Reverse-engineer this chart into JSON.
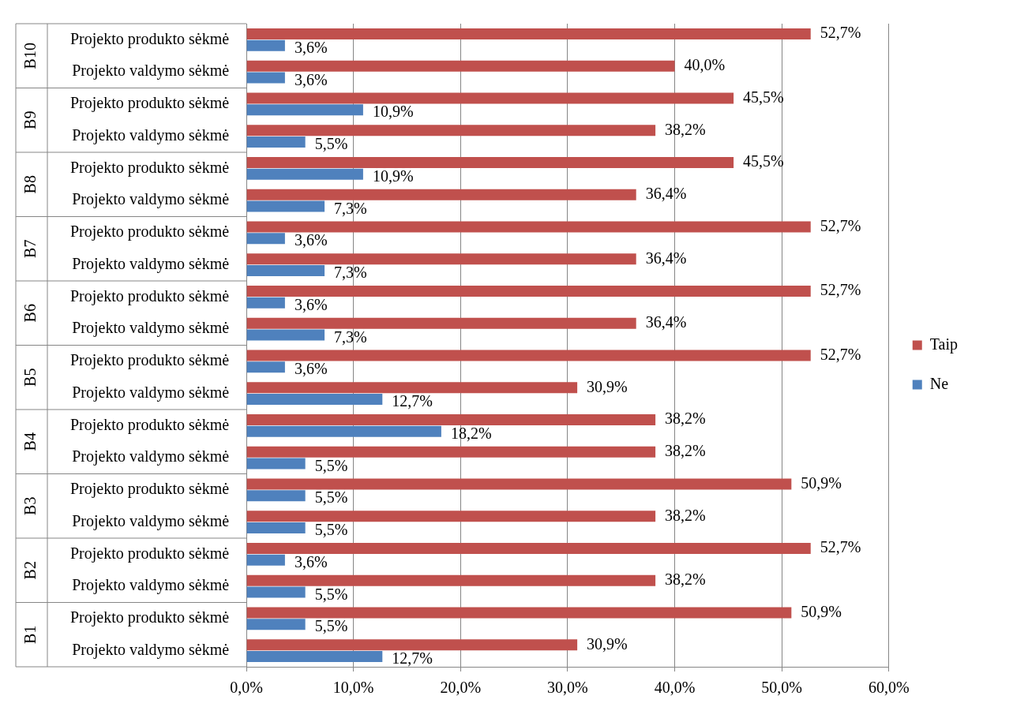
{
  "chart_data": {
    "type": "bar",
    "orientation": "horizontal",
    "legend": "right",
    "grid": "x",
    "categories": [
      "Projekto produkto sėkmė",
      "Projekto valdymo sėkmė",
      "Projekto produkto sėkmė",
      "Projekto valdymo sėkmė",
      "Projekto produkto sėkmė",
      "Projekto valdymo sėkmė",
      "Projekto produkto sėkmė",
      "Projekto valdymo sėkmė",
      "Projekto produkto sėkmė",
      "Projekto valdymo sėkmė",
      "Projekto produkto sėkmė",
      "Projekto valdymo sėkmė",
      "Projekto produkto sėkmė",
      "Projekto valdymo sėkmė",
      "Projekto produkto sėkmė",
      "Projekto valdymo sėkmė",
      "Projekto produkto sėkmė",
      "Projekto valdymo sėkmė",
      "Projekto produkto sėkmė",
      "Projekto valdymo sėkmė"
    ],
    "annotations": [
      "B10",
      "B9",
      "B8",
      "B7",
      "B6",
      "B5",
      "B4",
      "B3",
      "B2",
      "B1"
    ],
    "xlim": [
      0,
      60
    ],
    "xticks": [
      {
        "value": 0,
        "label": "0,0%"
      },
      {
        "value": 10,
        "label": "10,0%"
      },
      {
        "value": 20,
        "label": "20,0%"
      },
      {
        "value": 30,
        "label": "30,0%"
      },
      {
        "value": 40,
        "label": "40,0%"
      },
      {
        "value": 50,
        "label": "50,0%"
      },
      {
        "value": 60,
        "label": "60,0%"
      }
    ],
    "series": [
      {
        "name": "Taip",
        "color": "#c0504d",
        "values": [
          52.7,
          40.0,
          45.5,
          38.2,
          45.5,
          36.4,
          52.7,
          36.4,
          52.7,
          36.4,
          52.7,
          30.9,
          38.2,
          38.2,
          50.9,
          38.2,
          52.7,
          38.2,
          50.9,
          30.9
        ],
        "value_labels": [
          "52,7%",
          "40,0%",
          "45,5%",
          "38,2%",
          "45,5%",
          "36,4%",
          "52,7%",
          "36,4%",
          "52,7%",
          "36,4%",
          "52,7%",
          "30,9%",
          "38,2%",
          "38,2%",
          "50,9%",
          "38,2%",
          "52,7%",
          "38,2%",
          "50,9%",
          "30,9%"
        ]
      },
      {
        "name": "Ne",
        "color": "#4f81bd",
        "values": [
          3.6,
          3.6,
          10.9,
          5.5,
          10.9,
          7.3,
          3.6,
          7.3,
          3.6,
          7.3,
          3.6,
          12.7,
          18.2,
          5.5,
          5.5,
          5.5,
          3.6,
          5.5,
          5.5,
          12.7
        ],
        "value_labels": [
          "3,6%",
          "3,6%",
          "10,9%",
          "5,5%",
          "10,9%",
          "7,3%",
          "3,6%",
          "7,3%",
          "3,6%",
          "7,3%",
          "3,6%",
          "12,7%",
          "18,2%",
          "5,5%",
          "5,5%",
          "5,5%",
          "3,6%",
          "5,5%",
          "5,5%",
          "12,7%"
        ]
      }
    ]
  }
}
